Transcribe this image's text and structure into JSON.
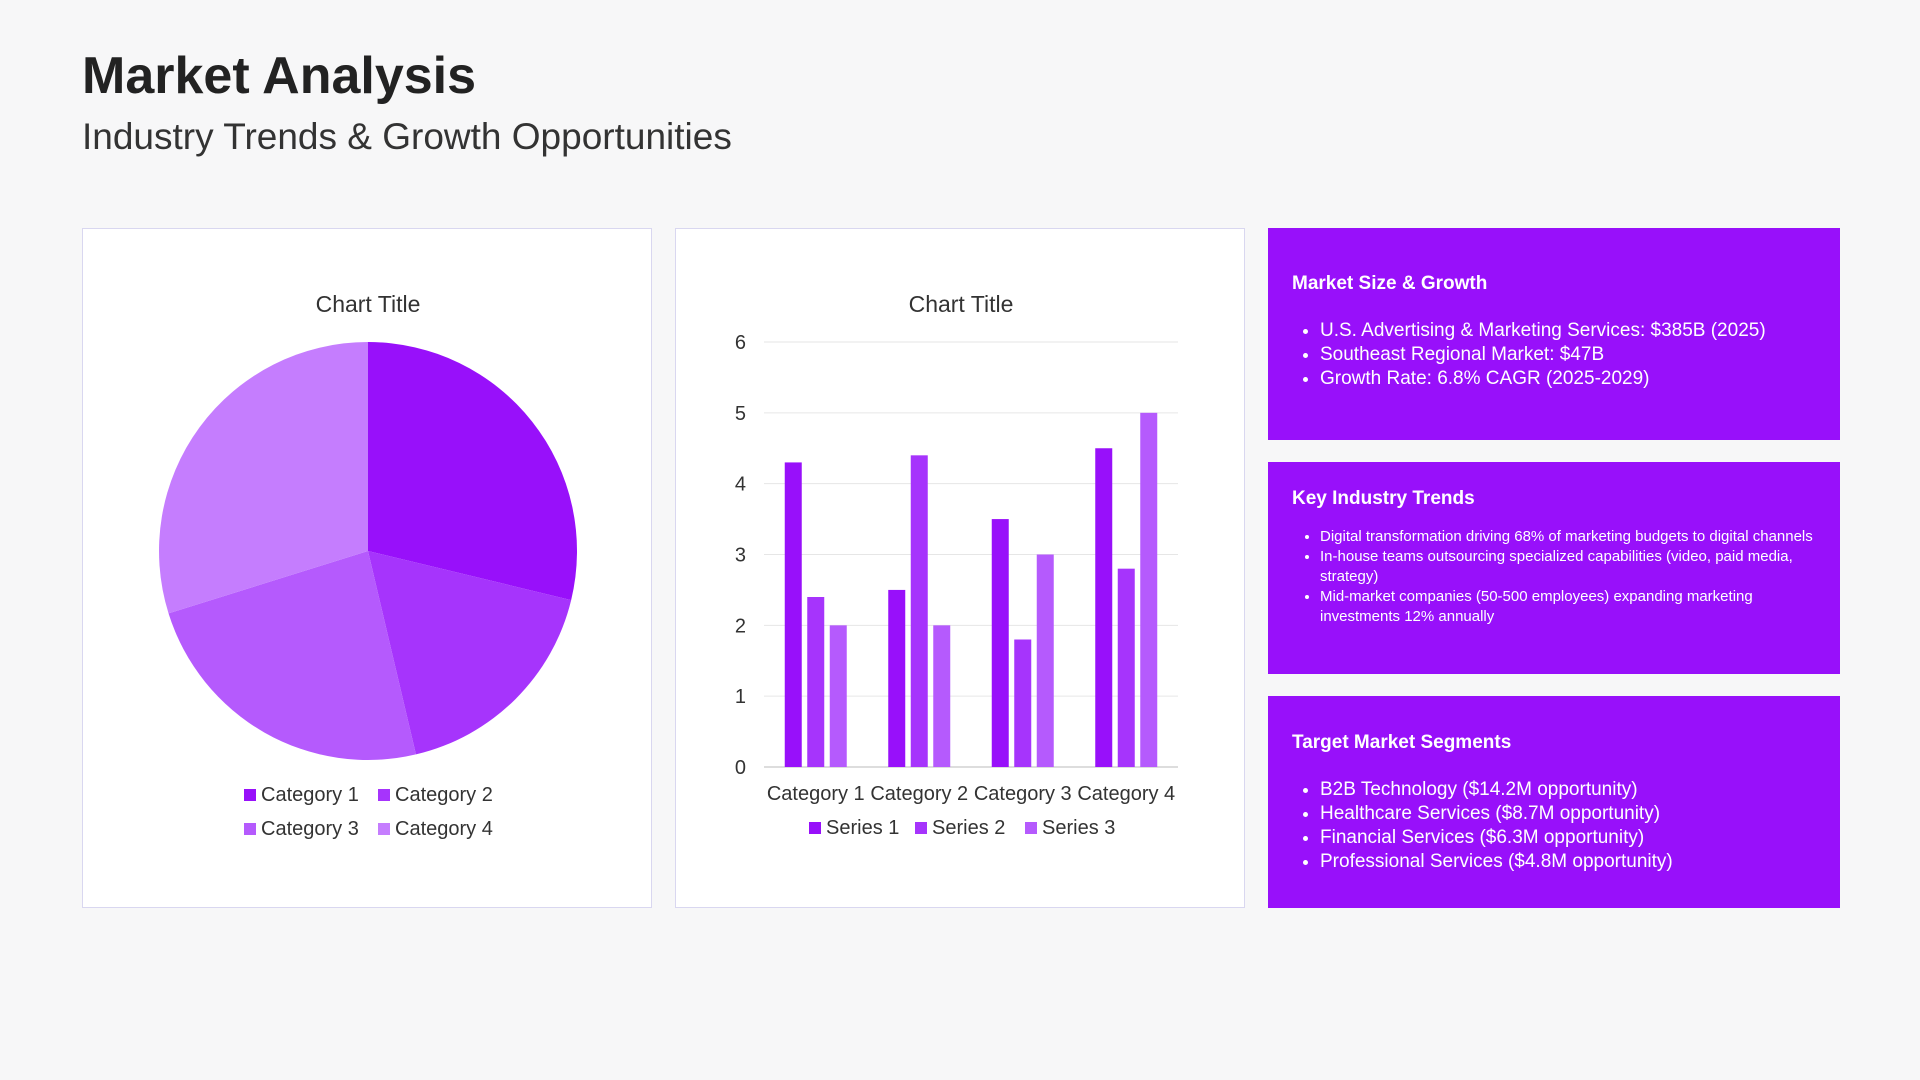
{
  "header": {
    "title": "Market Analysis",
    "subtitle": "Industry Trends & Growth Opportunities"
  },
  "colors": {
    "accent": "#9810fa",
    "pie": [
      "#9810fa",
      "#a634fc",
      "#b55afd",
      "#c57dfe"
    ],
    "bars": [
      "#9810fa",
      "#a634fc",
      "#b55afd"
    ]
  },
  "chart_data": [
    {
      "type": "pie",
      "title": "Chart Title",
      "categories": [
        "Category 1",
        "Category 2",
        "Category 3",
        "Category 4"
      ],
      "values": [
        8.2,
        5.0,
        6.8,
        8.5
      ],
      "legend": "bottom"
    },
    {
      "type": "bar",
      "title": "Chart Title",
      "categories": [
        "Category 1",
        "Category 2",
        "Category 3",
        "Category 4"
      ],
      "series": [
        {
          "name": "Series 1",
          "values": [
            4.3,
            2.5,
            3.5,
            4.5
          ]
        },
        {
          "name": "Series 2",
          "values": [
            2.4,
            4.4,
            1.8,
            2.8
          ]
        },
        {
          "name": "Series 3",
          "values": [
            2.0,
            2.0,
            3.0,
            5.0
          ]
        }
      ],
      "ylim": [
        0,
        6
      ],
      "yticks": [
        0,
        1,
        2,
        3,
        4,
        5,
        6
      ],
      "grid": true,
      "legend": "bottom"
    }
  ],
  "market_size": {
    "heading": "Market Size & Growth",
    "items": [
      "U.S. Advertising & Marketing Services: $385B (2025)",
      "Southeast Regional Market: $47B",
      "Growth Rate: 6.8% CAGR (2025-2029)"
    ]
  },
  "trends": {
    "heading": "Key Industry Trends",
    "items": [
      "Digital transformation driving 68% of marketing budgets to digital channels",
      "In-house teams outsourcing specialized capabilities (video, paid media, strategy)",
      "Mid-market companies (50-500 employees) expanding marketing investments 12% annually"
    ]
  },
  "segments": {
    "heading": "Target Market Segments",
    "items": [
      "B2B Technology ($14.2M opportunity)",
      "Healthcare Services ($8.7M opportunity)",
      "Financial Services ($6.3M opportunity)",
      "Professional Services ($4.8M opportunity)"
    ]
  }
}
